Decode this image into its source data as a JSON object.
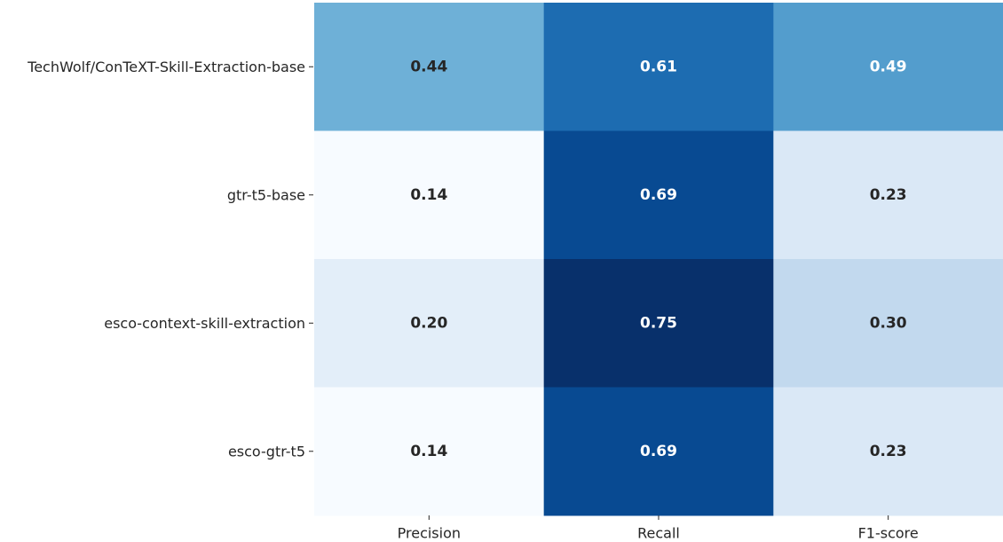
{
  "chart_data": {
    "type": "heatmap",
    "title": "",
    "xlabel": "",
    "ylabel": "",
    "rows": [
      "TechWolf/ConTeXT-Skill-Extraction-base",
      "gtr-t5-base",
      "esco-context-skill-extraction",
      "esco-gtr-t5"
    ],
    "columns": [
      "Precision",
      "Recall",
      "F1-score"
    ],
    "values": [
      [
        0.44,
        0.61,
        0.49
      ],
      [
        0.14,
        0.69,
        0.23
      ],
      [
        0.2,
        0.75,
        0.3
      ],
      [
        0.14,
        0.69,
        0.23
      ]
    ],
    "value_labels": [
      [
        "0.44",
        "0.61",
        "0.49"
      ],
      [
        "0.14",
        "0.69",
        "0.23"
      ],
      [
        "0.20",
        "0.75",
        "0.30"
      ],
      [
        "0.14",
        "0.69",
        "0.23"
      ]
    ],
    "colormap": "Blues",
    "vmin": 0.14,
    "vmax": 0.75,
    "colorbar": false,
    "grid": false
  }
}
